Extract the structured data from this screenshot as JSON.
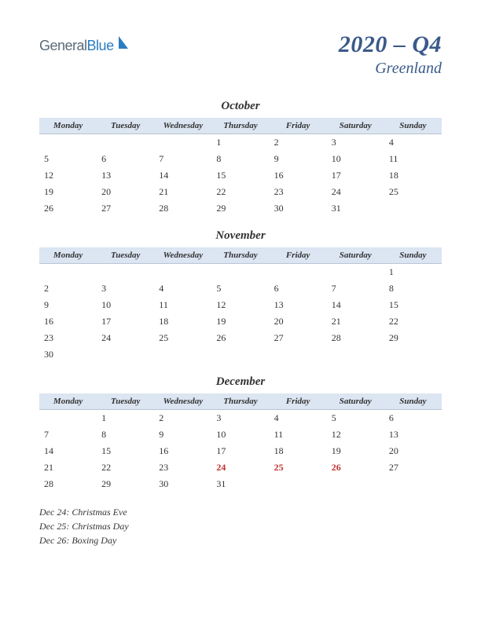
{
  "logo": {
    "general": "General",
    "blue": "Blue",
    "shape_fill": "#2b7dc4"
  },
  "title": {
    "quarter": "2020 – Q4",
    "region": "Greenland"
  },
  "day_headers": [
    "Monday",
    "Tuesday",
    "Wednesday",
    "Thursday",
    "Friday",
    "Saturday",
    "Sunday"
  ],
  "colors": {
    "header_bg": "#dce5f2",
    "title_color": "#3a5a8a",
    "holiday_color": "#c03030",
    "text_color": "#333333",
    "background": "#ffffff"
  },
  "typography": {
    "quarter_fontsize": 30,
    "region_fontsize": 20,
    "month_fontsize": 15,
    "header_fontsize": 11,
    "cell_fontsize": 12,
    "holiday_list_fontsize": 12
  },
  "months": [
    {
      "name": "October",
      "weeks": [
        [
          "",
          "",
          "",
          "1",
          "2",
          "3",
          "4"
        ],
        [
          "5",
          "6",
          "7",
          "8",
          "9",
          "10",
          "11"
        ],
        [
          "12",
          "13",
          "14",
          "15",
          "16",
          "17",
          "18"
        ],
        [
          "19",
          "20",
          "21",
          "22",
          "23",
          "24",
          "25"
        ],
        [
          "26",
          "27",
          "28",
          "29",
          "30",
          "31",
          ""
        ]
      ],
      "holidays": []
    },
    {
      "name": "November",
      "weeks": [
        [
          "",
          "",
          "",
          "",
          "",
          "",
          "1"
        ],
        [
          "2",
          "3",
          "4",
          "5",
          "6",
          "7",
          "8"
        ],
        [
          "9",
          "10",
          "11",
          "12",
          "13",
          "14",
          "15"
        ],
        [
          "16",
          "17",
          "18",
          "19",
          "20",
          "21",
          "22"
        ],
        [
          "23",
          "24",
          "25",
          "26",
          "27",
          "28",
          "29"
        ],
        [
          "30",
          "",
          "",
          "",
          "",
          "",
          ""
        ]
      ],
      "holidays": []
    },
    {
      "name": "December",
      "weeks": [
        [
          "",
          "1",
          "2",
          "3",
          "4",
          "5",
          "6"
        ],
        [
          "7",
          "8",
          "9",
          "10",
          "11",
          "12",
          "13"
        ],
        [
          "14",
          "15",
          "16",
          "17",
          "18",
          "19",
          "20"
        ],
        [
          "21",
          "22",
          "23",
          "24",
          "25",
          "26",
          "27"
        ],
        [
          "28",
          "29",
          "30",
          "31",
          "",
          "",
          ""
        ]
      ],
      "holidays": [
        "24",
        "25",
        "26"
      ]
    }
  ],
  "holiday_list": [
    "Dec 24: Christmas Eve",
    "Dec 25: Christmas Day",
    "Dec 26: Boxing Day"
  ]
}
